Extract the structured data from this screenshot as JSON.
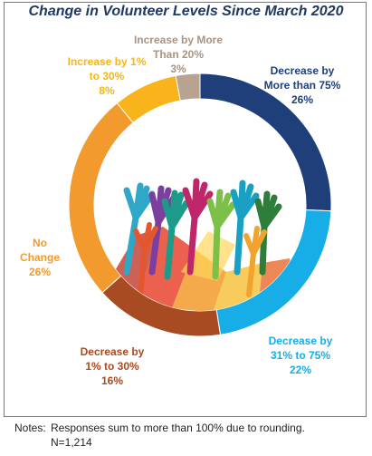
{
  "chart_data": {
    "type": "pie",
    "title": "Change in Volunteer Levels Since March 2020",
    "slices": [
      {
        "label_lines": [
          "Decrease by",
          "More than 75%"
        ],
        "value_label": "26%",
        "value": 26,
        "color": "#1f3f7a",
        "label_color": "#1f3f7a"
      },
      {
        "label_lines": [
          "Decrease by",
          "31% to 75%"
        ],
        "value_label": "22%",
        "value": 22,
        "color": "#17aee8",
        "label_color": "#17aee8"
      },
      {
        "label_lines": [
          "Decrease by",
          "1% to 30%"
        ],
        "value_label": "16%",
        "value": 16,
        "color": "#a84a22",
        "label_color": "#a84a22"
      },
      {
        "label_lines": [
          "No",
          "Change"
        ],
        "value_label": "26%",
        "value": 26,
        "color": "#f39a2e",
        "label_color": "#f39a2e"
      },
      {
        "label_lines": [
          "Increase by 1%",
          "to 30%"
        ],
        "value_label": "8%",
        "value": 8,
        "color": "#f8b41a",
        "label_color": "#f8b41a"
      },
      {
        "label_lines": [
          "Increase by More",
          "Than 20%"
        ],
        "value_label": "3%",
        "value": 3,
        "color": "#b8a392",
        "label_color": "#a89484"
      }
    ]
  },
  "notes": {
    "label": "Notes:",
    "line1": "Responses sum to more than 100% due to rounding.",
    "line2": "N=1,214"
  }
}
